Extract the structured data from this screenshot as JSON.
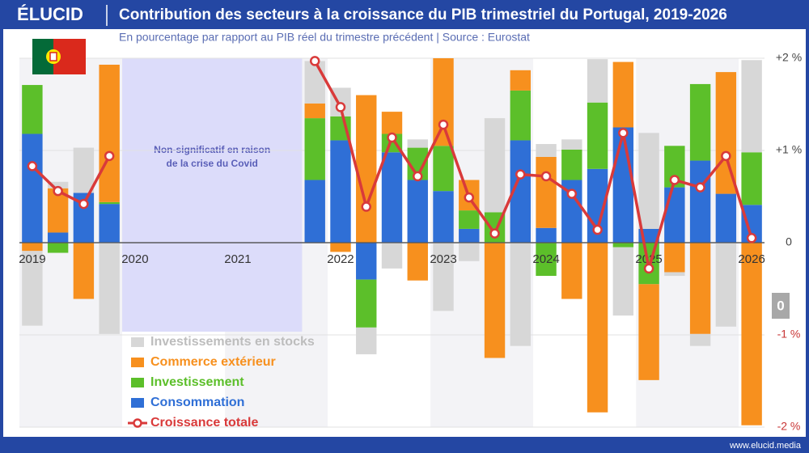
{
  "chart_data": {
    "type": "stacked_bar_line",
    "logo": "ÉLUCID",
    "title": "Contribution des secteurs à la croissance du PIB trimestriel du Portugal, 2019-2026",
    "subtitle": "En pourcentage par rapport au PIB réel du trimestre précédent  |  Source : Eurostat",
    "annotation": [
      "Non-significatif en raison",
      "de la crise du Covid"
    ],
    "badge": "0",
    "footer": "www.elucid.media",
    "categories": [
      "2019",
      null,
      null,
      null,
      "2020",
      null,
      null,
      null,
      "2021",
      null,
      null,
      null,
      "2022",
      null,
      null,
      null,
      "2023",
      null,
      null,
      null,
      "2024",
      null,
      null,
      null,
      "2025",
      null,
      null,
      null,
      "2026"
    ],
    "series": [
      {
        "name": "Consommation",
        "color": "#2f6fd6",
        "values": [
          1.18,
          0.11,
          0.54,
          0.42,
          null,
          null,
          null,
          null,
          null,
          null,
          null,
          0.68,
          1.11,
          -0.4,
          0.98,
          0.68,
          0.56,
          0.15,
          0,
          1.11,
          0.16,
          0.68,
          0.8,
          1.25,
          0.15,
          0.6,
          0.89,
          0.53,
          0.41
        ]
      },
      {
        "name": "Investissement",
        "color": "#5cbf2a",
        "values": [
          0.53,
          -0.11,
          0,
          0.02,
          null,
          null,
          null,
          null,
          null,
          null,
          null,
          0.67,
          0.26,
          -0.52,
          0.2,
          0.35,
          0.49,
          0.2,
          0.33,
          0.54,
          -0.36,
          0.33,
          0.72,
          -0.05,
          -0.45,
          0.45,
          0.83,
          0,
          0.57
        ]
      },
      {
        "name": "Commerce extérieur",
        "color": "#f7901e",
        "values": [
          -0.09,
          0.48,
          -0.61,
          1.49,
          null,
          null,
          null,
          null,
          null,
          null,
          null,
          0.16,
          -0.1,
          1.6,
          0.24,
          -0.41,
          0.95,
          0.33,
          -1.25,
          0.22,
          0.77,
          -0.61,
          -1.84,
          0.71,
          -1.04,
          -0.32,
          -0.99,
          1.32,
          -1.98
        ]
      },
      {
        "name": "Investissements en stocks",
        "color": "#d7d7d7",
        "values": [
          -0.81,
          0.07,
          0.49,
          -0.99,
          null,
          null,
          null,
          null,
          null,
          null,
          null,
          0.46,
          0.31,
          -0.29,
          -0.28,
          0.09,
          -0.74,
          -0.2,
          1.02,
          -1.12,
          0.14,
          0.11,
          0.47,
          -0.74,
          1.04,
          -0.04,
          -0.13,
          -0.91,
          1.0
        ]
      }
    ],
    "line_series": {
      "name": "Croissance totale",
      "color": "#d93a3a",
      "values": [
        0.83,
        0.56,
        0.42,
        0.94,
        null,
        null,
        null,
        null,
        null,
        null,
        null,
        1.97,
        1.47,
        0.39,
        1.14,
        0.72,
        1.28,
        0.49,
        0.1,
        0.74,
        0.72,
        0.53,
        0.14,
        1.19,
        -0.28,
        0.68,
        0.6,
        0.94,
        0.05
      ]
    },
    "ylim": [
      -2,
      2
    ],
    "yticks": [
      {
        "value": 2,
        "label": "+2 %"
      },
      {
        "value": 1,
        "label": "+1 %"
      },
      0,
      {
        "value": -1,
        "label": "-1 %"
      },
      {
        "value": -2,
        "label": "-2 %"
      }
    ],
    "grid": true,
    "legend": "lower-left"
  }
}
